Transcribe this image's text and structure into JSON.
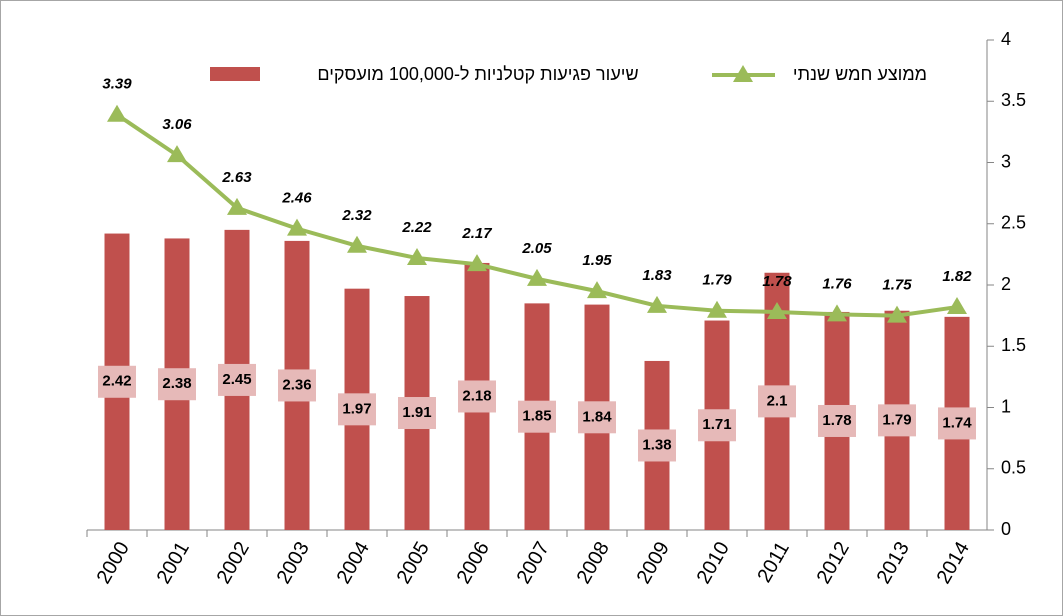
{
  "chart_data": {
    "type": "bar+line",
    "categories": [
      "2000",
      "2001",
      "2002",
      "2003",
      "2004",
      "2005",
      "2006",
      "2007",
      "2008",
      "2009",
      "2010",
      "2011",
      "2012",
      "2013",
      "2014"
    ],
    "series": [
      {
        "name": "שיעור פגיעות קטלניות ל-100,000 מועסקים",
        "type": "bar",
        "color": "#c0504d",
        "values": [
          2.42,
          2.38,
          2.45,
          2.36,
          1.97,
          1.91,
          2.18,
          1.85,
          1.84,
          1.38,
          1.71,
          2.1,
          1.78,
          1.79,
          1.74
        ]
      },
      {
        "name": "ממוצע חמש שנתי",
        "type": "line",
        "color": "#9bbb59",
        "values": [
          3.39,
          3.06,
          2.63,
          2.46,
          2.32,
          2.22,
          2.17,
          2.05,
          1.95,
          1.83,
          1.79,
          1.78,
          1.76,
          1.75,
          1.82
        ]
      }
    ],
    "ylim": [
      0,
      4
    ],
    "yticks": [
      0,
      0.5,
      1,
      1.5,
      2,
      2.5,
      3,
      3.5,
      4
    ],
    "y_axis_side": "right",
    "grid": false
  }
}
